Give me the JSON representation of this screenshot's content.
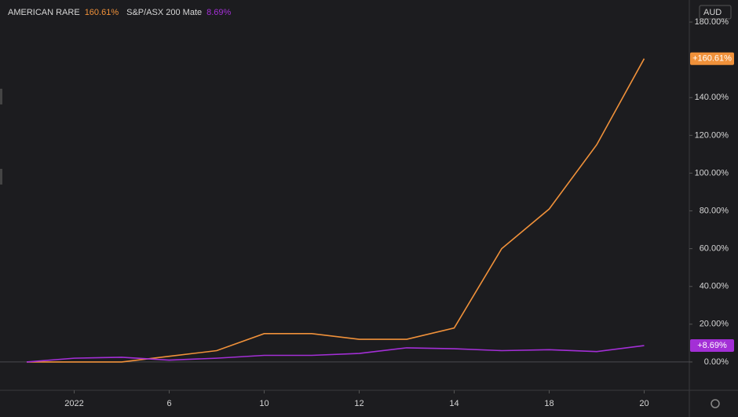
{
  "chart_data": {
    "type": "line",
    "currency": "AUD",
    "categories": [
      null,
      "2022",
      null,
      "6",
      null,
      "10",
      null,
      "12",
      null,
      "14",
      null,
      "18",
      null,
      "20"
    ],
    "series": [
      {
        "name": "AMERICAN RARE",
        "legend_value": "160.61%",
        "color": "#f0913a",
        "values": [
          0,
          0,
          0,
          3,
          6,
          15,
          15,
          12,
          12,
          18,
          60,
          81,
          115,
          160.61
        ],
        "value_labels": [
          null,
          null,
          null,
          null,
          null,
          null,
          null,
          null,
          null,
          null,
          null,
          null,
          null,
          "+160.61%"
        ]
      },
      {
        "name": "S&P/ASX 200 Mate",
        "legend_value": "8.69%",
        "color": "#a32fd6",
        "values": [
          0,
          2,
          2.5,
          1,
          2,
          3.5,
          3.5,
          4.5,
          7.5,
          7,
          6,
          6.5,
          5.5,
          8.69
        ],
        "value_labels": [
          null,
          null,
          null,
          null,
          null,
          null,
          null,
          null,
          null,
          null,
          null,
          null,
          null,
          "+8.69%"
        ]
      }
    ],
    "ylim": [
      -15,
      191.67
    ],
    "yticks": [
      {
        "value": 0,
        "label": "0.00%"
      },
      {
        "value": 20,
        "label": "20.00%"
      },
      {
        "value": 40,
        "label": "40.00%"
      },
      {
        "value": 60,
        "label": "60.00%"
      },
      {
        "value": 80,
        "label": "80.00%"
      },
      {
        "value": 100,
        "label": "100.00%"
      },
      {
        "value": 120,
        "label": "120.00%"
      },
      {
        "value": 140,
        "label": "140.00%"
      },
      {
        "value": 180,
        "label": "180.00%"
      }
    ]
  }
}
